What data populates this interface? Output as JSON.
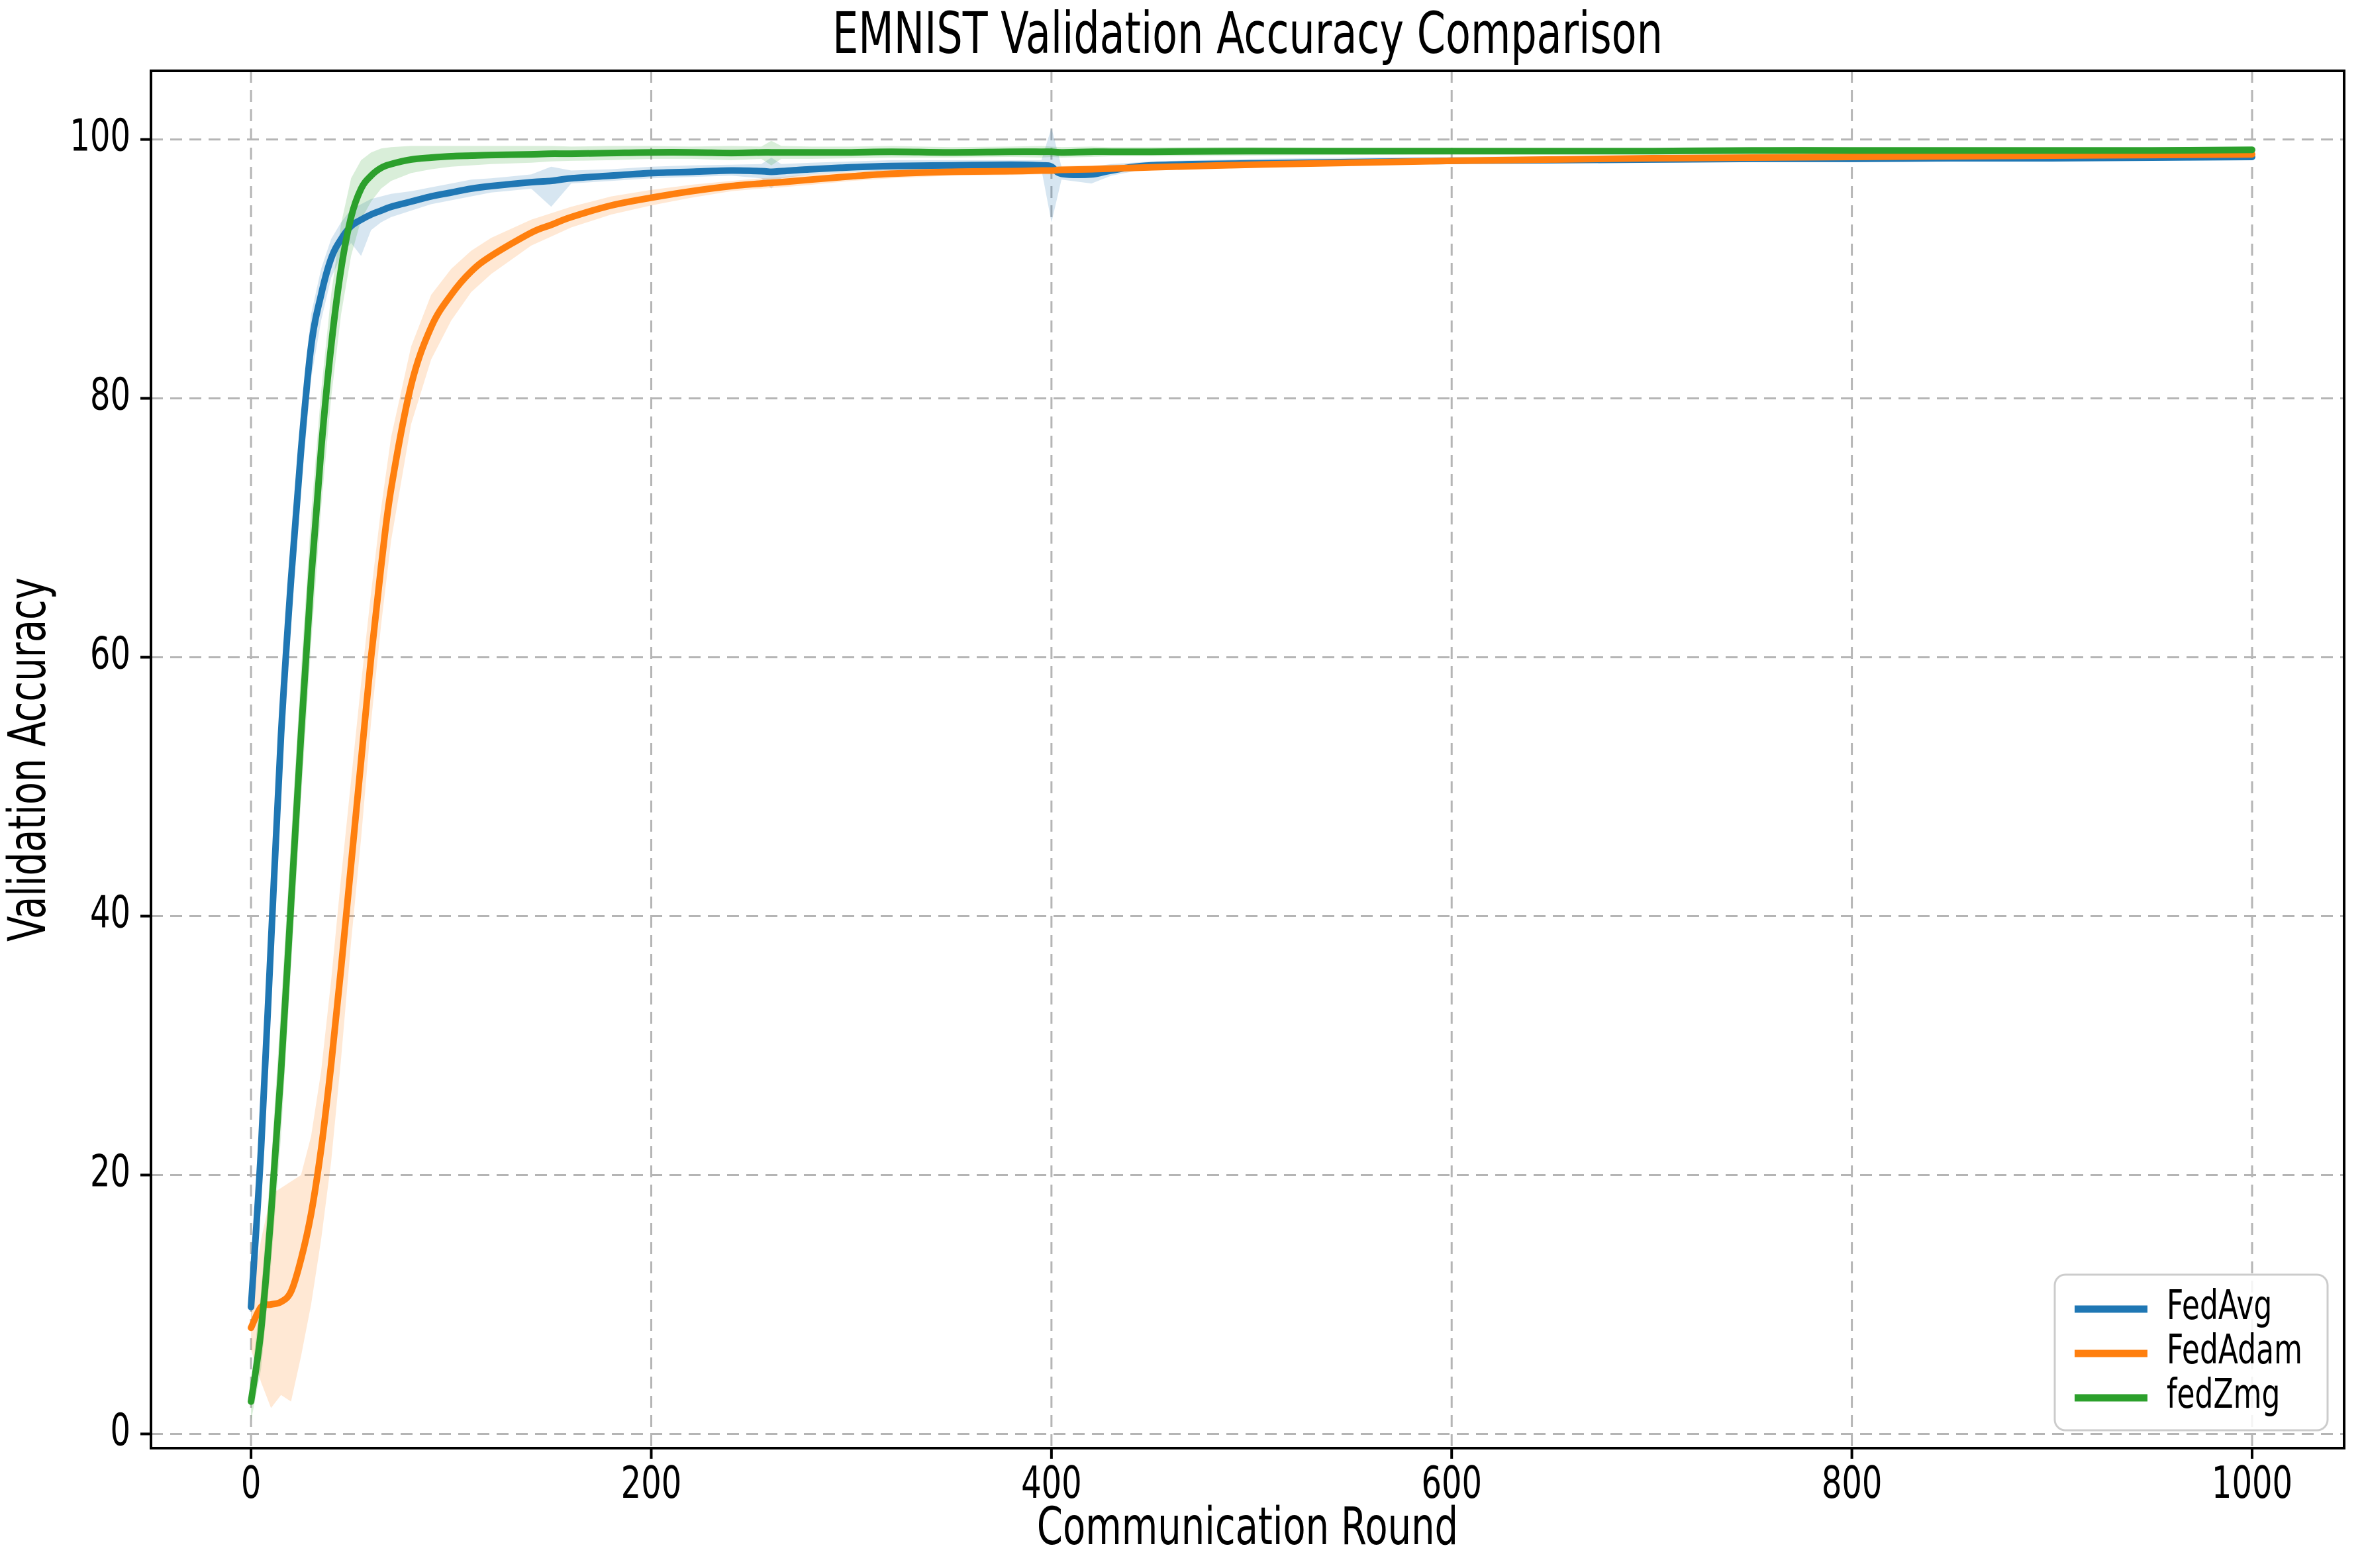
{
  "chart_data": {
    "type": "line",
    "title": "EMNIST Validation Accuracy Comparison",
    "xlabel": "Communication Round",
    "ylabel": "Validation Accuracy",
    "xlim": [
      -50,
      1046
    ],
    "ylim": [
      -1.1,
      105.3
    ],
    "xticks": [
      0,
      200,
      400,
      600,
      800,
      1000
    ],
    "yticks": [
      0,
      20,
      40,
      60,
      80,
      100
    ],
    "grid": true,
    "grid_style": "dashed",
    "legend_position": "lower right",
    "x": [
      0,
      5,
      10,
      15,
      20,
      25,
      30,
      35,
      40,
      45,
      50,
      55,
      60,
      65,
      70,
      80,
      90,
      100,
      110,
      120,
      140,
      150,
      160,
      180,
      200,
      220,
      240,
      255,
      260,
      265,
      280,
      300,
      320,
      350,
      380,
      395,
      400,
      405,
      420,
      430,
      450,
      500,
      550,
      600,
      650,
      700,
      750,
      800,
      850,
      900,
      950,
      1000
    ],
    "series": [
      {
        "name": "FedAvg",
        "color": "#1f77b4",
        "values": [
          9.8,
          22,
          38,
          54,
          66,
          76,
          84,
          88,
          90.8,
          92.3,
          93.3,
          93.8,
          94.2,
          94.5,
          94.8,
          95.2,
          95.6,
          95.9,
          96.2,
          96.4,
          96.7,
          96.8,
          97.0,
          97.2,
          97.4,
          97.5,
          97.6,
          97.55,
          97.5,
          97.55,
          97.7,
          97.85,
          97.95,
          98.0,
          98.05,
          98.0,
          97.9,
          97.35,
          97.3,
          97.6,
          98.0,
          98.15,
          98.25,
          98.35,
          98.4,
          98.45,
          98.5,
          98.5,
          98.55,
          98.55,
          98.6,
          98.65
        ],
        "band_lower": [
          8.5,
          19,
          34,
          50,
          62.5,
          73,
          81.5,
          86,
          89.3,
          91.0,
          92.0,
          91.0,
          93.0,
          93.6,
          94.0,
          94.5,
          95.0,
          95.3,
          95.6,
          95.9,
          96.2,
          94.8,
          96.6,
          96.8,
          97.0,
          97.1,
          97.2,
          97.0,
          96.2,
          97.0,
          97.3,
          97.5,
          97.6,
          97.7,
          97.75,
          97.7,
          93.6,
          96.9,
          96.6,
          97.2,
          97.8,
          97.95,
          98.05,
          98.15,
          98.2,
          98.25,
          98.3,
          98.3,
          98.35,
          98.4,
          98.4,
          98.45
        ],
        "band_upper": [
          11,
          25,
          42,
          58,
          69.5,
          79,
          86.5,
          90,
          92.3,
          93.6,
          94.6,
          95.0,
          95.4,
          95.6,
          95.8,
          96.0,
          96.3,
          96.6,
          96.9,
          97.0,
          97.3,
          97.9,
          97.6,
          97.7,
          97.9,
          98.0,
          98.05,
          98.1,
          98.6,
          98.1,
          98.2,
          98.3,
          98.4,
          98.4,
          98.4,
          98.4,
          100.9,
          97.9,
          97.9,
          98.1,
          98.3,
          98.5,
          98.6,
          98.65,
          98.7,
          98.7,
          98.75,
          98.75,
          98.8,
          98.8,
          98.8,
          98.85
        ]
      },
      {
        "name": "FedAdam",
        "color": "#ff7f0e",
        "values": [
          8.2,
          9.8,
          10.0,
          10.2,
          11,
          13.5,
          17,
          22,
          28.5,
          36,
          44,
          52,
          60,
          67,
          73,
          81,
          85.5,
          88,
          89.8,
          91,
          92.8,
          93.4,
          94.0,
          94.9,
          95.5,
          96.0,
          96.4,
          96.6,
          96.65,
          96.7,
          96.9,
          97.15,
          97.35,
          97.5,
          97.55,
          97.6,
          97.6,
          97.65,
          97.7,
          97.75,
          97.85,
          98.05,
          98.2,
          98.35,
          98.45,
          98.55,
          98.6,
          98.65,
          98.7,
          98.75,
          98.8,
          98.85
        ],
        "band_lower": [
          6.5,
          4,
          2,
          3,
          2.5,
          6,
          10,
          15,
          21,
          29,
          38,
          46,
          55,
          62.5,
          69,
          78,
          83,
          86,
          88.2,
          89.6,
          91.8,
          92.5,
          93.2,
          94.2,
          94.9,
          95.5,
          96.0,
          96.2,
          96.25,
          96.3,
          96.5,
          96.8,
          97.0,
          97.2,
          97.25,
          97.3,
          97.3,
          97.35,
          97.4,
          97.45,
          97.6,
          97.8,
          98.0,
          98.15,
          98.25,
          98.4,
          98.45,
          98.5,
          98.55,
          98.6,
          98.65,
          98.7
        ],
        "band_upper": [
          10,
          15,
          18.5,
          19,
          19.5,
          20,
          23,
          28,
          35,
          43,
          50.5,
          58,
          65,
          71.5,
          77,
          84,
          88,
          90,
          91.4,
          92.4,
          93.8,
          94.3,
          94.8,
          95.6,
          96.1,
          96.5,
          96.8,
          97.0,
          97.05,
          97.1,
          97.3,
          97.5,
          97.7,
          97.8,
          97.85,
          97.9,
          97.9,
          97.95,
          98.0,
          98.05,
          98.1,
          98.3,
          98.4,
          98.55,
          98.65,
          98.7,
          98.75,
          98.8,
          98.85,
          98.9,
          98.95,
          99.0
        ]
      },
      {
        "name": "fedZmg",
        "color": "#2ca02c",
        "values": [
          2.5,
          8,
          17,
          28,
          41,
          54,
          66,
          76,
          84,
          90,
          94,
          96.2,
          97.2,
          97.8,
          98.1,
          98.45,
          98.6,
          98.7,
          98.75,
          98.8,
          98.85,
          98.9,
          98.9,
          98.95,
          99.0,
          99.0,
          98.95,
          99.0,
          99.0,
          99.0,
          99.0,
          99.0,
          99.05,
          99.0,
          99.05,
          99.05,
          99.05,
          99.0,
          99.05,
          99.05,
          99.05,
          99.1,
          99.1,
          99.1,
          99.1,
          99.1,
          99.15,
          99.15,
          99.15,
          99.15,
          99.15,
          99.2
        ],
        "band_lower": [
          1,
          5,
          13,
          23,
          36,
          49,
          61,
          71.5,
          80,
          86.5,
          91,
          93.8,
          95.2,
          96.2,
          96.8,
          97.4,
          97.7,
          97.9,
          98.0,
          98.1,
          98.2,
          98.3,
          98.35,
          98.4,
          98.5,
          98.5,
          98.4,
          98.5,
          98.0,
          98.5,
          98.5,
          98.55,
          98.6,
          98.6,
          98.65,
          98.6,
          98.65,
          98.6,
          98.65,
          98.7,
          98.7,
          98.75,
          98.8,
          98.85,
          98.85,
          98.9,
          98.9,
          98.95,
          98.95,
          99.0,
          99.0,
          99.05
        ],
        "band_upper": [
          4,
          11,
          21,
          33,
          46,
          59,
          71,
          80.5,
          88,
          93.5,
          97,
          98.4,
          99.0,
          99.3,
          99.4,
          99.5,
          99.5,
          99.5,
          99.5,
          99.5,
          99.5,
          99.5,
          99.45,
          99.5,
          99.5,
          99.45,
          99.5,
          99.45,
          99.9,
          99.5,
          99.45,
          99.45,
          99.5,
          99.4,
          99.45,
          99.5,
          99.45,
          99.4,
          99.45,
          99.4,
          99.4,
          99.4,
          99.35,
          99.35,
          99.3,
          99.3,
          99.35,
          99.3,
          99.3,
          99.3,
          99.3,
          99.3
        ]
      }
    ],
    "band_opacity": 0.18,
    "grid_color": "#b5b5b5"
  }
}
